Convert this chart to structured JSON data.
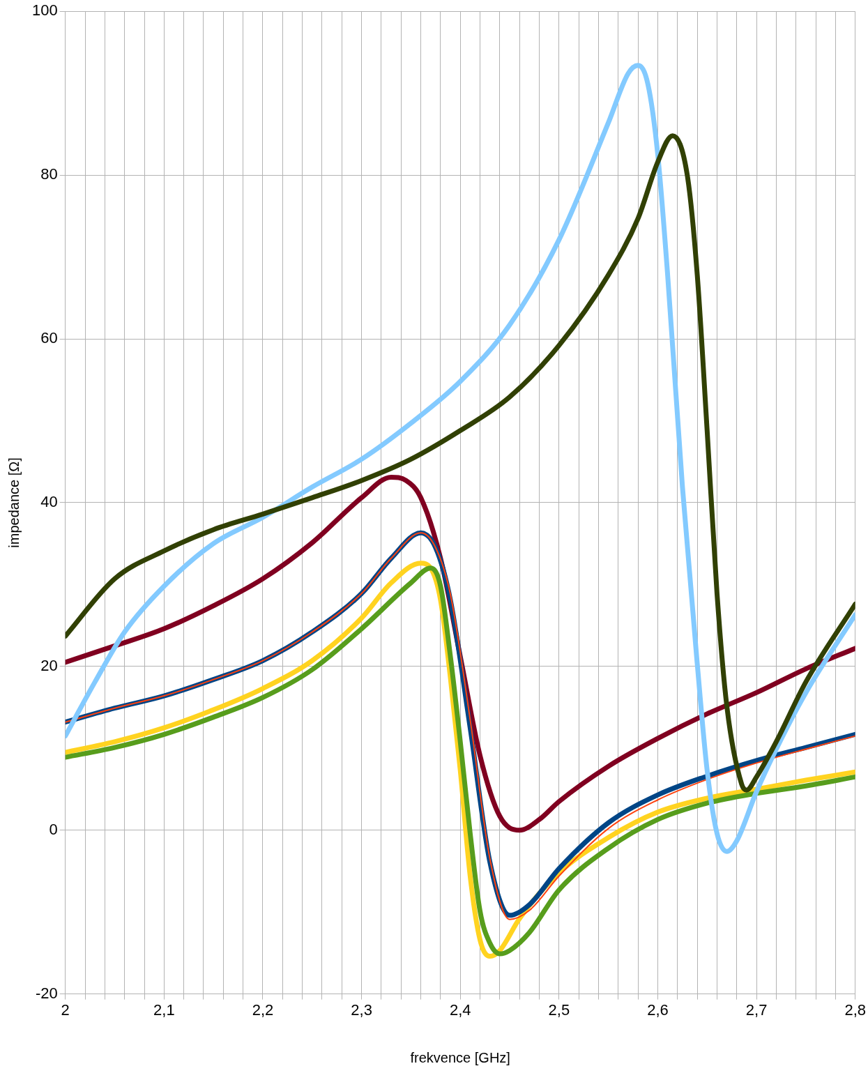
{
  "chart_data": {
    "type": "line",
    "xlabel": "frekvence [GHz]",
    "ylabel": "impedance [Ω]",
    "xlim": [
      2,
      2.8
    ],
    "ylim": [
      -20,
      100
    ],
    "xticks": [
      {
        "value": 2,
        "label": "2"
      },
      {
        "value": 2.02,
        "label": null
      },
      {
        "value": 2.04,
        "label": null
      },
      {
        "value": 2.06,
        "label": null
      },
      {
        "value": 2.08,
        "label": null
      },
      {
        "value": 2.1,
        "label": "2,1"
      },
      {
        "value": 2.12,
        "label": null
      },
      {
        "value": 2.14,
        "label": null
      },
      {
        "value": 2.16,
        "label": null
      },
      {
        "value": 2.18,
        "label": null
      },
      {
        "value": 2.2,
        "label": "2,2"
      },
      {
        "value": 2.22,
        "label": null
      },
      {
        "value": 2.24,
        "label": null
      },
      {
        "value": 2.26,
        "label": null
      },
      {
        "value": 2.28,
        "label": null
      },
      {
        "value": 2.3,
        "label": "2,3"
      },
      {
        "value": 2.32,
        "label": null
      },
      {
        "value": 2.34,
        "label": null
      },
      {
        "value": 2.36,
        "label": null
      },
      {
        "value": 2.38,
        "label": null
      },
      {
        "value": 2.4,
        "label": "2,4"
      },
      {
        "value": 2.42,
        "label": null
      },
      {
        "value": 2.44,
        "label": null
      },
      {
        "value": 2.46,
        "label": null
      },
      {
        "value": 2.48,
        "label": null
      },
      {
        "value": 2.5,
        "label": "2,5"
      },
      {
        "value": 2.52,
        "label": null
      },
      {
        "value": 2.54,
        "label": null
      },
      {
        "value": 2.56,
        "label": null
      },
      {
        "value": 2.58,
        "label": null
      },
      {
        "value": 2.6,
        "label": "2,6"
      },
      {
        "value": 2.62,
        "label": null
      },
      {
        "value": 2.64,
        "label": null
      },
      {
        "value": 2.66,
        "label": null
      },
      {
        "value": 2.68,
        "label": null
      },
      {
        "value": 2.7,
        "label": "2,7"
      },
      {
        "value": 2.72,
        "label": null
      },
      {
        "value": 2.74,
        "label": null
      },
      {
        "value": 2.76,
        "label": null
      },
      {
        "value": 2.78,
        "label": null
      },
      {
        "value": 2.8,
        "label": "2,8"
      }
    ],
    "yticks": [
      -20,
      0,
      20,
      40,
      60,
      80,
      100
    ],
    "grid": true,
    "legend": false,
    "marker": "none",
    "line_style": "solid",
    "series": [
      {
        "color": "#314004",
        "x": [
          2,
          2.05,
          2.1,
          2.15,
          2.2,
          2.25,
          2.3,
          2.35,
          2.4,
          2.45,
          2.5,
          2.55,
          2.58,
          2.6,
          2.615,
          2.63,
          2.64,
          2.65,
          2.66,
          2.67,
          2.685,
          2.69,
          2.7,
          2.72,
          2.75,
          2.8
        ],
        "values": [
          23.7,
          30.7,
          34.1,
          36.7,
          38.6,
          40.6,
          42.7,
          45.3,
          48.8,
          52.9,
          59.2,
          67.8,
          74.7,
          81.6,
          84.8,
          79.9,
          67.8,
          48.8,
          28.9,
          15.1,
          5.6,
          4.9,
          6.5,
          10.8,
          18.1,
          27.6
        ]
      },
      {
        "color": "#83caff",
        "x": [
          2,
          2.03,
          2.06,
          2.1,
          2.15,
          2.2,
          2.25,
          2.3,
          2.35,
          2.4,
          2.45,
          2.5,
          2.55,
          2.57,
          2.58,
          2.59,
          2.6,
          2.61,
          2.625,
          2.64,
          2.65,
          2.66,
          2.67,
          2.68,
          2.7,
          2.72,
          2.75,
          2.8
        ],
        "values": [
          11.5,
          18.1,
          24.2,
          29.8,
          35,
          38.2,
          41.9,
          45.3,
          49.7,
          54.8,
          61.7,
          72.1,
          86.4,
          92.4,
          93.4,
          91.1,
          82.5,
          67.8,
          41.9,
          20.3,
          7.3,
          -0.4,
          -2.6,
          -1.3,
          4.7,
          9.9,
          16.8,
          26.3
        ]
      },
      {
        "color": "#ff420e",
        "x": [
          2,
          2.05,
          2.1,
          2.15,
          2.2,
          2.25,
          2.3,
          2.33,
          2.36,
          2.375,
          2.39,
          2.41,
          2.43,
          2.45,
          2.47,
          2.5,
          2.55,
          2.6,
          2.65,
          2.7,
          2.75,
          2.8
        ],
        "values": [
          13.2,
          14.9,
          16.4,
          18.4,
          20.7,
          24.2,
          28.9,
          33.2,
          36.3,
          34.5,
          28.8,
          13.5,
          -3.5,
          -10.9,
          -9.8,
          -5.6,
          0.2,
          3.7,
          6.2,
          8.2,
          9.9,
          11.5
        ]
      },
      {
        "color": "#004586",
        "x": [
          2,
          2.05,
          2.1,
          2.15,
          2.2,
          2.25,
          2.3,
          2.33,
          2.36,
          2.375,
          2.39,
          2.41,
          2.43,
          2.45,
          2.47,
          2.5,
          2.55,
          2.6,
          2.65,
          2.7,
          2.75,
          2.8
        ],
        "values": [
          13.2,
          14.9,
          16.4,
          18.4,
          20.7,
          24.2,
          28.9,
          33.2,
          36.3,
          34.5,
          28.1,
          12.5,
          -3.9,
          -10.4,
          -9.1,
          -4.7,
          0.9,
          4.3,
          6.6,
          8.5,
          10.1,
          11.7
        ]
      },
      {
        "color": "#800020",
        "x": [
          2,
          2.05,
          2.1,
          2.15,
          2.2,
          2.25,
          2.3,
          2.33,
          2.345,
          2.36,
          2.38,
          2.4,
          2.42,
          2.44,
          2.46,
          2.48,
          2.5,
          2.55,
          2.6,
          2.65,
          2.7,
          2.75,
          2.8
        ],
        "values": [
          20.5,
          22.5,
          24.6,
          27.4,
          30.7,
          35.1,
          40.6,
          43.1,
          42.7,
          40.6,
          33.2,
          21.2,
          9.1,
          1.7,
          0,
          1.3,
          3.5,
          7.8,
          11.2,
          14.2,
          16.8,
          19.7,
          22.2
        ]
      },
      {
        "color": "#579d1c",
        "x": [
          2,
          2.05,
          2.1,
          2.15,
          2.2,
          2.25,
          2.3,
          2.35,
          2.37,
          2.38,
          2.39,
          2.4,
          2.41,
          2.42,
          2.43,
          2.44,
          2.45,
          2.47,
          2.5,
          2.55,
          2.6,
          2.65,
          2.7,
          2.75,
          2.8
        ],
        "values": [
          8.9,
          10.1,
          11.7,
          13.8,
          16.2,
          19.6,
          24.6,
          30.2,
          32,
          29.8,
          21.2,
          10.8,
          -0.4,
          -9.9,
          -13.8,
          -15.1,
          -14.7,
          -12.5,
          -7.3,
          -2.2,
          1.3,
          3.3,
          4.5,
          5.4,
          6.5
        ]
      },
      {
        "color": "#ffd320",
        "x": [
          2,
          2.05,
          2.1,
          2.15,
          2.2,
          2.25,
          2.3,
          2.33,
          2.36,
          2.37,
          2.38,
          2.39,
          2.4,
          2.41,
          2.42,
          2.43,
          2.44,
          2.46,
          2.5,
          2.55,
          2.6,
          2.65,
          2.7,
          2.75,
          2.8
        ],
        "values": [
          9.5,
          10.8,
          12.5,
          14.7,
          17.3,
          20.7,
          25.9,
          30.2,
          32.6,
          32,
          28.1,
          18.6,
          7.3,
          -5.6,
          -13.4,
          -15.4,
          -14.7,
          -10.8,
          -5.2,
          -0.9,
          2.2,
          3.9,
          5,
          6.1,
          7.1
        ]
      }
    ]
  }
}
